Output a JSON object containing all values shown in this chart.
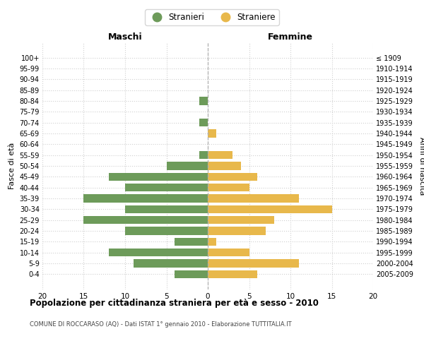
{
  "age_groups": [
    "0-4",
    "5-9",
    "10-14",
    "15-19",
    "20-24",
    "25-29",
    "30-34",
    "35-39",
    "40-44",
    "45-49",
    "50-54",
    "55-59",
    "60-64",
    "65-69",
    "70-74",
    "75-79",
    "80-84",
    "85-89",
    "90-94",
    "95-99",
    "100+"
  ],
  "birth_years": [
    "2005-2009",
    "2000-2004",
    "1995-1999",
    "1990-1994",
    "1985-1989",
    "1980-1984",
    "1975-1979",
    "1970-1974",
    "1965-1969",
    "1960-1964",
    "1955-1959",
    "1950-1954",
    "1945-1949",
    "1940-1944",
    "1935-1939",
    "1930-1934",
    "1925-1929",
    "1920-1924",
    "1915-1919",
    "1910-1914",
    "≤ 1909"
  ],
  "maschi": [
    4,
    9,
    12,
    4,
    10,
    15,
    10,
    15,
    10,
    12,
    5,
    1,
    0,
    0,
    1,
    0,
    1,
    0,
    0,
    0,
    0
  ],
  "femmine": [
    6,
    11,
    5,
    1,
    7,
    8,
    15,
    11,
    5,
    6,
    4,
    3,
    0,
    1,
    0,
    0,
    0,
    0,
    0,
    0,
    0
  ],
  "male_color": "#6d9b5a",
  "female_color": "#e8b84b",
  "title": "Popolazione per cittadinanza straniera per età e sesso - 2010",
  "subtitle": "COMUNE DI ROCCARASO (AQ) - Dati ISTAT 1° gennaio 2010 - Elaborazione TUTTITALIA.IT",
  "xlabel_left": "Maschi",
  "xlabel_right": "Femmine",
  "ylabel_left": "Fasce di età",
  "ylabel_right": "Anni di nascita",
  "legend_male": "Stranieri",
  "legend_female": "Straniere",
  "xlim": 20,
  "background_color": "#ffffff",
  "grid_color": "#d0d0d0"
}
